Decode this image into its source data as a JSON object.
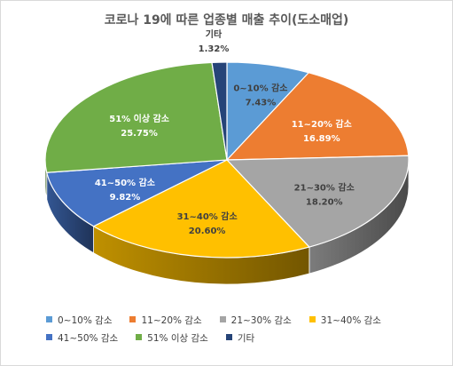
{
  "chart_data": {
    "type": "pie",
    "title": "코로나 19에 따른 업종별 매출 추이(도소매업)",
    "categories": [
      "0~10% 감소",
      "11~20% 감소",
      "21~30% 감소",
      "31~40% 감소",
      "41~50% 감소",
      "51% 이상 감소",
      "기타"
    ],
    "values": [
      7.43,
      16.89,
      18.2,
      20.6,
      9.82,
      25.75,
      1.32
    ],
    "value_labels": [
      "7.43%",
      "16.89%",
      "18.20%",
      "20.60%",
      "9.82%",
      "25.75%",
      "1.32%"
    ],
    "colors": [
      "#5b9bd5",
      "#ed7d31",
      "#a5a5a5",
      "#ffc000",
      "#4472c4",
      "#70ad47",
      "#264478"
    ],
    "style": "3d",
    "legend_position": "bottom"
  }
}
